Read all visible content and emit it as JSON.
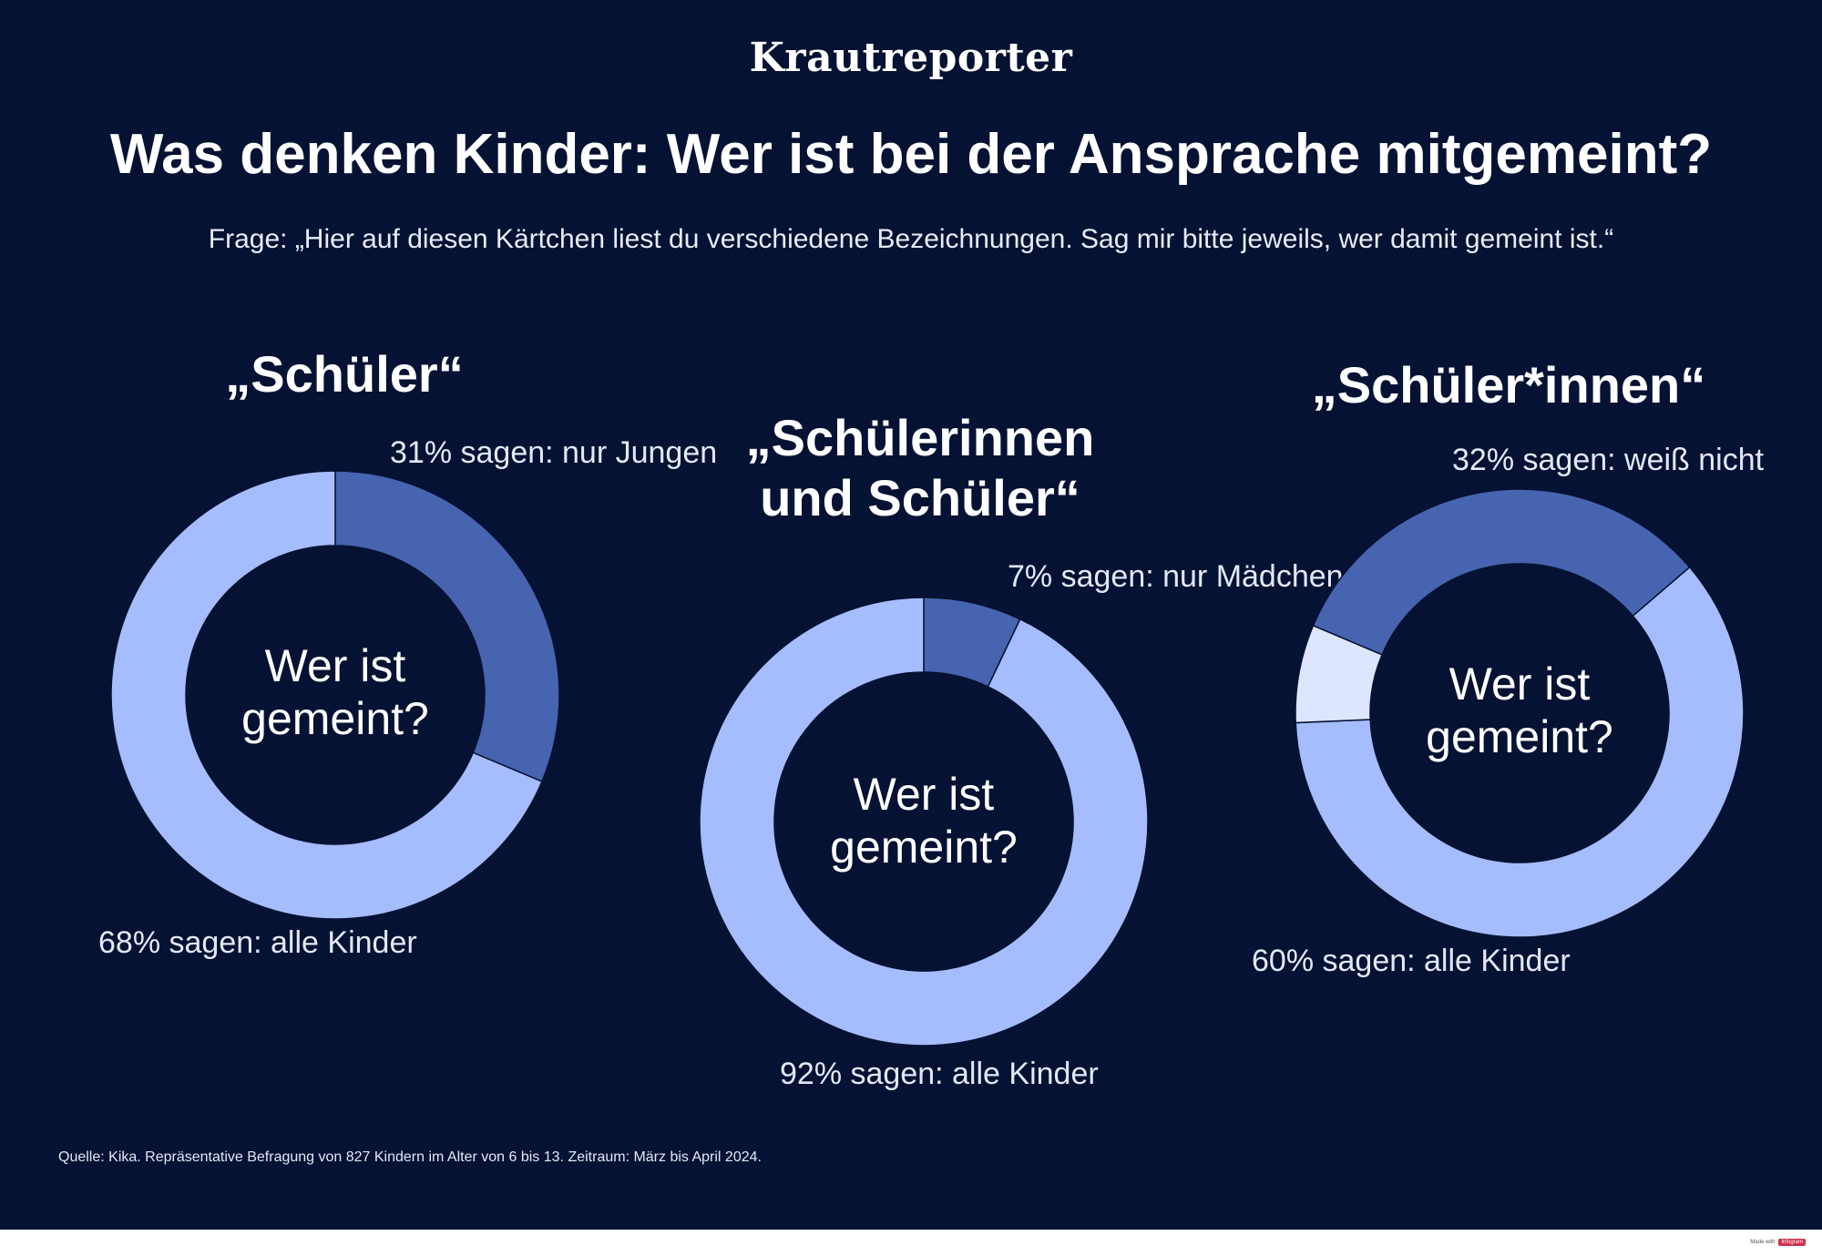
{
  "brand": "Krautreporter",
  "title": "Was denken Kinder: Wer ist bei der Ansprache mitgemeint?",
  "subtitle": "Frage: „Hier auf diesen Kärtchen liest du verschiedene Bezeichnungen. Sag mir bitte jeweils, wer damit gemeint ist.“",
  "source": "Quelle: Kika. Repräsentative Befragung von 827 Kindern im Alter von 6 bis 13. Zeitraum: März bis April 2024.",
  "footer": {
    "made_with": "Made with",
    "logo": "Infogram"
  },
  "colors": {
    "background": "#061233",
    "all_children": "#a5bdfc",
    "highlight": "#4764b0",
    "dont_know": "#dde6fd"
  },
  "chart_data": [
    {
      "type": "pie",
      "title": "„Schüler“",
      "center_text_line1": "Wer ist",
      "center_text_line2": "gemeint?",
      "labels": [
        "31% sagen: nur Jungen",
        "68% sagen: alle Kinder"
      ],
      "segments": [
        {
          "name": "nur Jungen",
          "value": 31,
          "color": "#4764b0"
        },
        {
          "name": "alle Kinder",
          "value": 68,
          "color": "#a5bdfc"
        }
      ]
    },
    {
      "type": "pie",
      "title": "„Schülerinnen und Schüler“",
      "title_line1": "„Schülerinnen",
      "title_line2": "und Schüler“",
      "center_text_line1": "Wer ist",
      "center_text_line2": "gemeint?",
      "labels": [
        "7% sagen: nur Mädchen",
        "92% sagen: alle Kinder"
      ],
      "segments": [
        {
          "name": "nur Mädchen",
          "value": 7,
          "color": "#4764b0"
        },
        {
          "name": "alle Kinder",
          "value": 92,
          "color": "#a5bdfc"
        }
      ]
    },
    {
      "type": "pie",
      "title": "„Schüler*innen“",
      "center_text_line1": "Wer ist",
      "center_text_line2": "gemeint?",
      "labels": [
        "32% sagen: weiß nicht",
        "60% sagen: alle Kinder"
      ],
      "segments": [
        {
          "name": "weiß nicht",
          "value": 32,
          "color": "#4764b0"
        },
        {
          "name": "alle Kinder",
          "value": 60,
          "color": "#a5bdfc"
        },
        {
          "name": "",
          "value": 7,
          "color": "#dde6fd"
        }
      ]
    }
  ]
}
